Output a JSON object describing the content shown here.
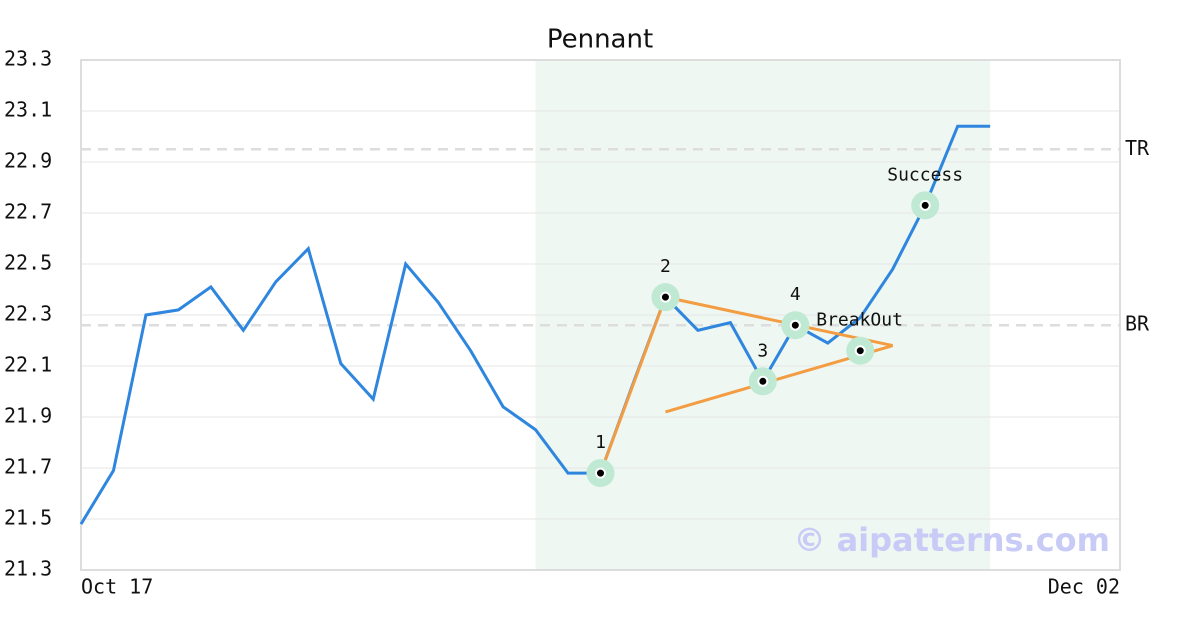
{
  "chart_data": {
    "type": "line",
    "title": "Pennant",
    "categories": [
      "Oct 17",
      null,
      null,
      null,
      null,
      null,
      null,
      null,
      null,
      null,
      null,
      null,
      null,
      null,
      null,
      null,
      null,
      null,
      null,
      null,
      null,
      null,
      null,
      null,
      null,
      null,
      null,
      null,
      null,
      null,
      null,
      null,
      "Dec 02"
    ],
    "values": [
      21.48,
      21.69,
      22.3,
      22.32,
      22.41,
      22.24,
      22.43,
      22.56,
      22.11,
      21.97,
      22.5,
      22.35,
      22.16,
      21.94,
      21.85,
      21.68,
      21.68,
      22.03,
      22.37,
      22.24,
      22.27,
      22.04,
      22.26,
      22.19,
      22.29,
      22.48,
      22.73,
      23.04,
      23.04,
      null,
      null,
      null,
      null
    ],
    "color": "#2e86de",
    "ylim": [
      21.3,
      23.3
    ],
    "yticks": [
      21.3,
      21.5,
      21.7,
      21.9,
      22.1,
      22.3,
      22.5,
      22.7,
      22.9,
      23.1,
      23.3
    ],
    "grid": true,
    "highlight": {
      "from": 14,
      "to": 28,
      "color": "#eef7f2"
    },
    "reference_lines": [
      {
        "label": "TR",
        "value": 22.95
      },
      {
        "label": "BR",
        "value": 22.26
      }
    ],
    "trend_color": "#f39c42",
    "trend_lines": [
      {
        "x": [
          16,
          18
        ],
        "y": [
          21.68,
          22.37
        ]
      },
      {
        "x": [
          18,
          25
        ],
        "y": [
          22.37,
          22.18
        ]
      },
      {
        "x": [
          18,
          25
        ],
        "y": [
          21.92,
          22.18
        ]
      }
    ],
    "annotations": [
      {
        "label": "1",
        "x": 16,
        "value": 21.68,
        "position": "above"
      },
      {
        "label": "2",
        "x": 18,
        "value": 22.37,
        "position": "above"
      },
      {
        "label": "3",
        "x": 21,
        "value": 22.04,
        "position": "above"
      },
      {
        "label": "4",
        "x": 22,
        "value": 22.26,
        "position": "above"
      },
      {
        "label": "BreakOut",
        "x": 24,
        "value": 22.16,
        "position": "upper-left"
      },
      {
        "label": "Success",
        "x": 26,
        "value": 22.73,
        "position": "above"
      }
    ],
    "watermark": "© aipatterns.com"
  }
}
